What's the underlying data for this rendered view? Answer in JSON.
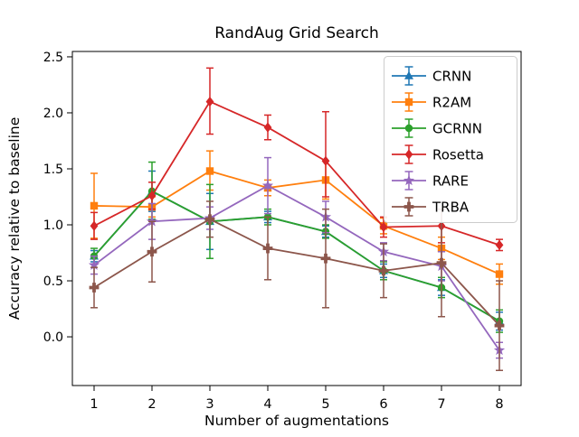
{
  "figure": {
    "background": "#ffffff"
  },
  "chart_data": {
    "type": "line",
    "title": "RandAug Grid Search",
    "xlabel": "Number of augmentations",
    "ylabel": "Accuracy relative to baseline",
    "grid": false,
    "legend_position": "upper right",
    "x": [
      1,
      2,
      3,
      4,
      5,
      6,
      7,
      8
    ],
    "xtick_labels": [
      "1",
      "2",
      "3",
      "4",
      "5",
      "6",
      "7",
      "8"
    ],
    "yticks": [
      0.0,
      0.5,
      1.0,
      1.5,
      2.0,
      2.5
    ],
    "ytick_labels": [
      "0.0",
      "0.5",
      "1.0",
      "1.5",
      "2.0",
      "2.5"
    ],
    "xlim": [
      0.625,
      8.375
    ],
    "ylim": [
      -0.435,
      2.548
    ],
    "series": [
      {
        "name": "CRNN",
        "color": "#1f77b4",
        "marker": "triangle",
        "values": [
          0.72,
          1.3,
          1.03,
          1.07,
          0.94,
          0.59,
          0.44,
          0.14
        ],
        "err_lo": [
          0.67,
          1.12,
          0.78,
          1.02,
          0.89,
          0.53,
          0.37,
          0.06
        ],
        "err_hi": [
          0.77,
          1.48,
          1.28,
          1.12,
          0.99,
          0.65,
          0.51,
          0.22
        ]
      },
      {
        "name": "R2AM",
        "color": "#ff7f0e",
        "marker": "square",
        "values": [
          1.17,
          1.16,
          1.48,
          1.33,
          1.4,
          0.99,
          0.79,
          0.56
        ],
        "err_lo": [
          0.88,
          1.07,
          1.31,
          1.26,
          1.23,
          0.92,
          0.69,
          0.47
        ],
        "err_hi": [
          1.46,
          1.25,
          1.66,
          1.4,
          1.57,
          1.06,
          0.89,
          0.65
        ]
      },
      {
        "name": "GCRNN",
        "color": "#2ca02c",
        "marker": "circle",
        "values": [
          0.72,
          1.3,
          1.03,
          1.07,
          0.94,
          0.59,
          0.44,
          0.14
        ],
        "err_lo": [
          0.65,
          1.05,
          0.7,
          1.0,
          0.88,
          0.51,
          0.35,
          0.04
        ],
        "err_hi": [
          0.79,
          1.56,
          1.36,
          1.14,
          1.0,
          0.67,
          0.53,
          0.24
        ]
      },
      {
        "name": "Rosetta",
        "color": "#d62728",
        "marker": "diamond",
        "values": [
          0.99,
          1.26,
          2.1,
          1.87,
          1.57,
          0.98,
          0.99,
          0.82
        ],
        "err_lo": [
          0.87,
          1.14,
          1.81,
          1.76,
          1.25,
          0.89,
          0.84,
          0.77
        ],
        "err_hi": [
          1.11,
          1.38,
          2.4,
          1.98,
          2.01,
          1.07,
          1.14,
          0.87
        ]
      },
      {
        "name": "RARE",
        "color": "#9467bd",
        "marker": "star",
        "values": [
          0.64,
          1.03,
          1.06,
          1.35,
          1.07,
          0.76,
          0.63,
          -0.12
        ],
        "err_lo": [
          0.56,
          0.87,
          0.96,
          1.1,
          0.93,
          0.68,
          0.5,
          -0.19
        ],
        "err_hi": [
          0.72,
          1.19,
          1.16,
          1.6,
          1.21,
          0.84,
          0.76,
          -0.05
        ]
      },
      {
        "name": "TRBA",
        "color": "#8c564b",
        "marker": "plus",
        "values": [
          0.44,
          0.76,
          1.05,
          0.79,
          0.7,
          0.59,
          0.66,
          0.1
        ],
        "err_lo": [
          0.26,
          0.49,
          0.89,
          0.51,
          0.26,
          0.35,
          0.18,
          -0.3
        ],
        "err_hi": [
          0.62,
          1.03,
          1.21,
          1.07,
          1.14,
          0.83,
          1.14,
          0.5
        ]
      }
    ]
  }
}
